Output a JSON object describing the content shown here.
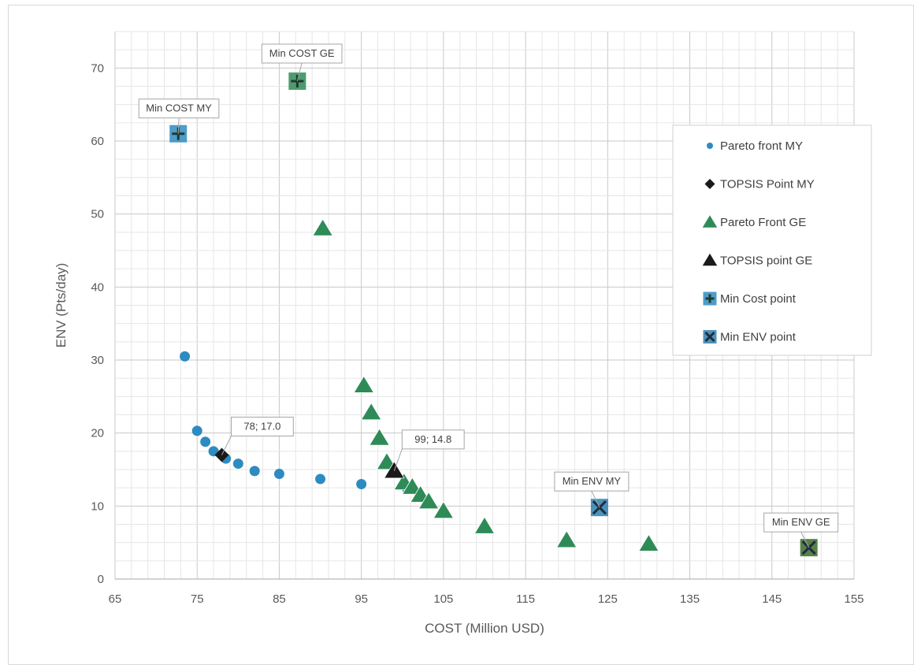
{
  "chart_data": {
    "type": "scatter",
    "xlabel": "COST (Million USD)",
    "ylabel": "ENV (Pts/day)",
    "xlim": [
      65,
      155
    ],
    "ylim": [
      0,
      75
    ],
    "x_ticks": [
      65,
      75,
      85,
      95,
      105,
      115,
      125,
      135,
      145,
      155
    ],
    "y_ticks": [
      0,
      10,
      20,
      30,
      40,
      50,
      60,
      70
    ],
    "grid": true,
    "minor_grid": true,
    "legend_position": "right",
    "series": [
      {
        "name": "Pareto front MY",
        "marker": "circle",
        "color": "#2e8bc0",
        "points": [
          [
            73.5,
            30.5
          ],
          [
            75,
            20.3
          ],
          [
            76,
            18.8
          ],
          [
            77,
            17.5
          ],
          [
            78.5,
            16.5
          ],
          [
            80,
            15.8
          ],
          [
            82,
            14.8
          ],
          [
            85,
            14.4
          ],
          [
            90,
            13.7
          ],
          [
            95,
            13
          ],
          [
            100.5,
            12.5
          ]
        ]
      },
      {
        "name": "TOPSIS Point MY",
        "marker": "diamond",
        "color": "#1a1a1a",
        "points": [
          [
            78,
            17.0
          ]
        ]
      },
      {
        "name": "Pareto Front GE",
        "marker": "triangle",
        "color": "#2e8b57",
        "points": [
          [
            90.3,
            48
          ],
          [
            95.3,
            26.5
          ],
          [
            96.2,
            22.8
          ],
          [
            97.2,
            19.3
          ],
          [
            98.1,
            16
          ],
          [
            100.2,
            13.2
          ],
          [
            101.2,
            12.6
          ],
          [
            102.2,
            11.5
          ],
          [
            103.2,
            10.6
          ],
          [
            105,
            9.3
          ],
          [
            110,
            7.2
          ],
          [
            120,
            5.3
          ],
          [
            130,
            4.8
          ]
        ]
      },
      {
        "name": "TOPSIS point GE",
        "marker": "triangle",
        "color": "#1a1a1a",
        "points": [
          [
            99,
            14.8
          ]
        ]
      },
      {
        "name": "Min Cost point",
        "marker": "plus-square",
        "color": "#2e8bc0",
        "points": [
          [
            72.7,
            61
          ],
          [
            87.2,
            68.2
          ]
        ]
      },
      {
        "name": "Min ENV point",
        "marker": "x-square",
        "color": "#2e7fb0",
        "points": [
          [
            124,
            9.8
          ],
          [
            149.5,
            4.3
          ]
        ]
      }
    ],
    "annotations": [
      {
        "text": "Min COST GE",
        "x": 87.2,
        "y": 68.2
      },
      {
        "text": "Min COST MY",
        "x": 72.7,
        "y": 61
      },
      {
        "text": "78; 17.0",
        "x": 78,
        "y": 17.0
      },
      {
        "text": "99; 14.8",
        "x": 99,
        "y": 14.8
      },
      {
        "text": "Min ENV MY",
        "x": 124,
        "y": 9.8
      },
      {
        "text": "Min ENV GE",
        "x": 149.5,
        "y": 4.3
      }
    ]
  },
  "marker_variants": {
    "Min Cost point": [
      "#2e8bc0",
      "#2e8b57"
    ],
    "Min ENV point": [
      "#2e7fb0",
      "#3a6b2a"
    ]
  }
}
